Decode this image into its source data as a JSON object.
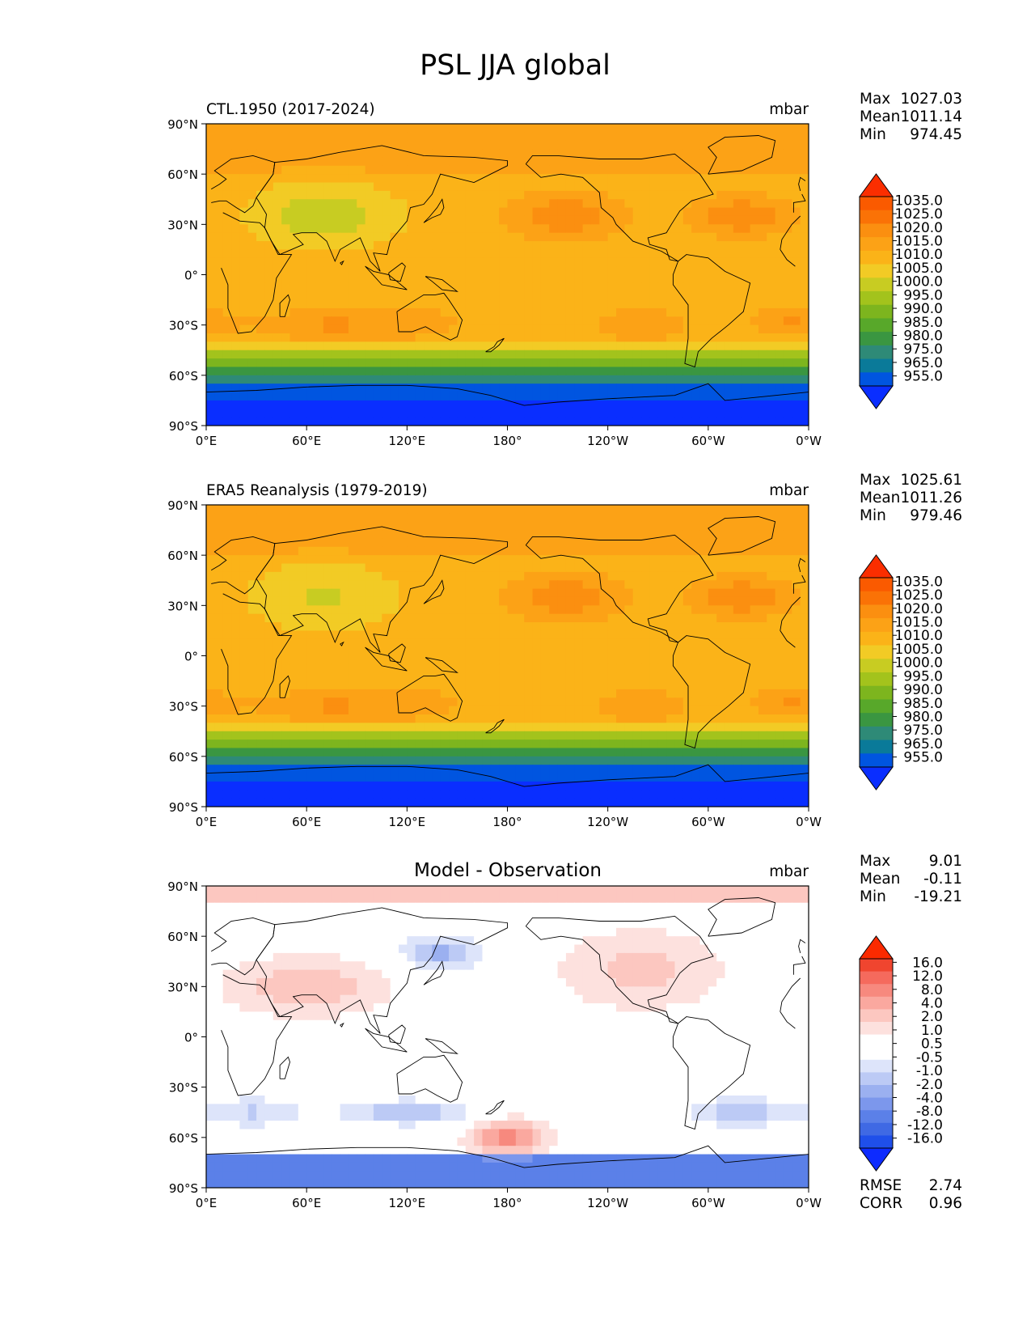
{
  "figure": {
    "title": "PSL JJA global"
  },
  "colors": {
    "abs_levels": [
      "#0a2eff",
      "#0055e0",
      "#0a7a99",
      "#2e8a77",
      "#3a9641",
      "#58a82a",
      "#7db51e",
      "#a3c31c",
      "#c8cc22",
      "#f2cb25",
      "#fbb318",
      "#fca216",
      "#fb8f10",
      "#fa7206",
      "#fa5a00",
      "#fb2e00"
    ],
    "diff_levels": [
      "#0d2bff",
      "#1f4fea",
      "#3f69e4",
      "#5b80e8",
      "#7c97ec",
      "#9bb0f0",
      "#bccaf5",
      "#dde4fa",
      "#ffffff",
      "#ffffff",
      "#fde1de",
      "#fcc7c0",
      "#faa89f",
      "#f7897e",
      "#f56a5d",
      "#f0452f",
      "#fb2a00"
    ],
    "coast": "#000000"
  },
  "panels": [
    {
      "title": "CTL.1950 (2017-2024)",
      "units": "mbar",
      "stats": [
        {
          "label": "Max",
          "value": "1027.03"
        },
        {
          "label": "Mean",
          "value": "1011.14"
        },
        {
          "label": "Min",
          "value": "974.45"
        }
      ],
      "colorbar_labels": [
        "1035.0",
        "1025.0",
        "1020.0",
        "1015.0",
        "1010.0",
        "1005.0",
        "1000.0",
        "995.0",
        "990.0",
        "985.0",
        "980.0",
        "975.0",
        "965.0",
        "955.0"
      ],
      "scheme": "abs"
    },
    {
      "title": "ERA5 Reanalysis (1979-2019)",
      "units": "mbar",
      "stats": [
        {
          "label": "Max",
          "value": "1025.61"
        },
        {
          "label": "Mean",
          "value": "1011.26"
        },
        {
          "label": "Min",
          "value": "979.46"
        }
      ],
      "colorbar_labels": [
        "1035.0",
        "1025.0",
        "1020.0",
        "1015.0",
        "1010.0",
        "1005.0",
        "1000.0",
        "995.0",
        "990.0",
        "985.0",
        "980.0",
        "975.0",
        "965.0",
        "955.0"
      ],
      "scheme": "abs"
    },
    {
      "title": "Model - Observation",
      "units": "mbar",
      "stats": [
        {
          "label": "Max",
          "value": "9.01"
        },
        {
          "label": "Mean",
          "value": "-0.11"
        },
        {
          "label": "Min",
          "value": "-19.21"
        }
      ],
      "colorbar_labels": [
        "16.0",
        "12.0",
        "8.0",
        "4.0",
        "2.0",
        "1.0",
        "0.5",
        "-0.5",
        "-1.0",
        "-2.0",
        "-4.0",
        "-8.0",
        "-12.0",
        "-16.0"
      ],
      "scheme": "diff",
      "extra_stats": [
        {
          "label": "RMSE",
          "value": "2.74"
        },
        {
          "label": "CORR",
          "value": "0.96"
        }
      ]
    }
  ],
  "chart_data": [
    {
      "type": "heatmap",
      "title": "CTL.1950 (2017-2024)",
      "units": "mbar",
      "x_tick_labels": [
        "0°E",
        "60°E",
        "120°E",
        "180°",
        "120°W",
        "60°W",
        "0°W"
      ],
      "y_tick_labels": [
        "90°N",
        "60°N",
        "30°N",
        "0°",
        "30°S",
        "60°S",
        "90°S"
      ],
      "xlim": [
        0,
        360
      ],
      "ylim": [
        -90,
        90
      ],
      "stats": {
        "max": 1027.03,
        "mean": 1011.14,
        "min": 974.45
      },
      "colorbar_levels": [
        955,
        965,
        975,
        980,
        985,
        990,
        995,
        1000,
        1005,
        1010,
        1015,
        1020,
        1025,
        1035
      ]
    },
    {
      "type": "heatmap",
      "title": "ERA5 Reanalysis (1979-2019)",
      "units": "mbar",
      "x_tick_labels": [
        "0°E",
        "60°E",
        "120°E",
        "180°",
        "120°W",
        "60°W",
        "0°W"
      ],
      "y_tick_labels": [
        "90°N",
        "60°N",
        "30°N",
        "0°",
        "30°S",
        "60°S",
        "90°S"
      ],
      "xlim": [
        0,
        360
      ],
      "ylim": [
        -90,
        90
      ],
      "stats": {
        "max": 1025.61,
        "mean": 1011.26,
        "min": 979.46
      },
      "colorbar_levels": [
        955,
        965,
        975,
        980,
        985,
        990,
        995,
        1000,
        1005,
        1010,
        1015,
        1020,
        1025,
        1035
      ]
    },
    {
      "type": "heatmap",
      "title": "Model - Observation",
      "units": "mbar",
      "x_tick_labels": [
        "0°E",
        "60°E",
        "120°E",
        "180°",
        "120°W",
        "60°W",
        "0°W"
      ],
      "y_tick_labels": [
        "90°N",
        "60°N",
        "30°N",
        "0°",
        "30°S",
        "60°S",
        "90°S"
      ],
      "xlim": [
        0,
        360
      ],
      "ylim": [
        -90,
        90
      ],
      "stats": {
        "max": 9.01,
        "mean": -0.11,
        "min": -19.21,
        "rmse": 2.74,
        "corr": 0.96
      },
      "colorbar_levels": [
        -16,
        -12,
        -8,
        -4,
        -2,
        -1,
        -0.5,
        0.5,
        1,
        2,
        4,
        8,
        12,
        16
      ]
    }
  ]
}
